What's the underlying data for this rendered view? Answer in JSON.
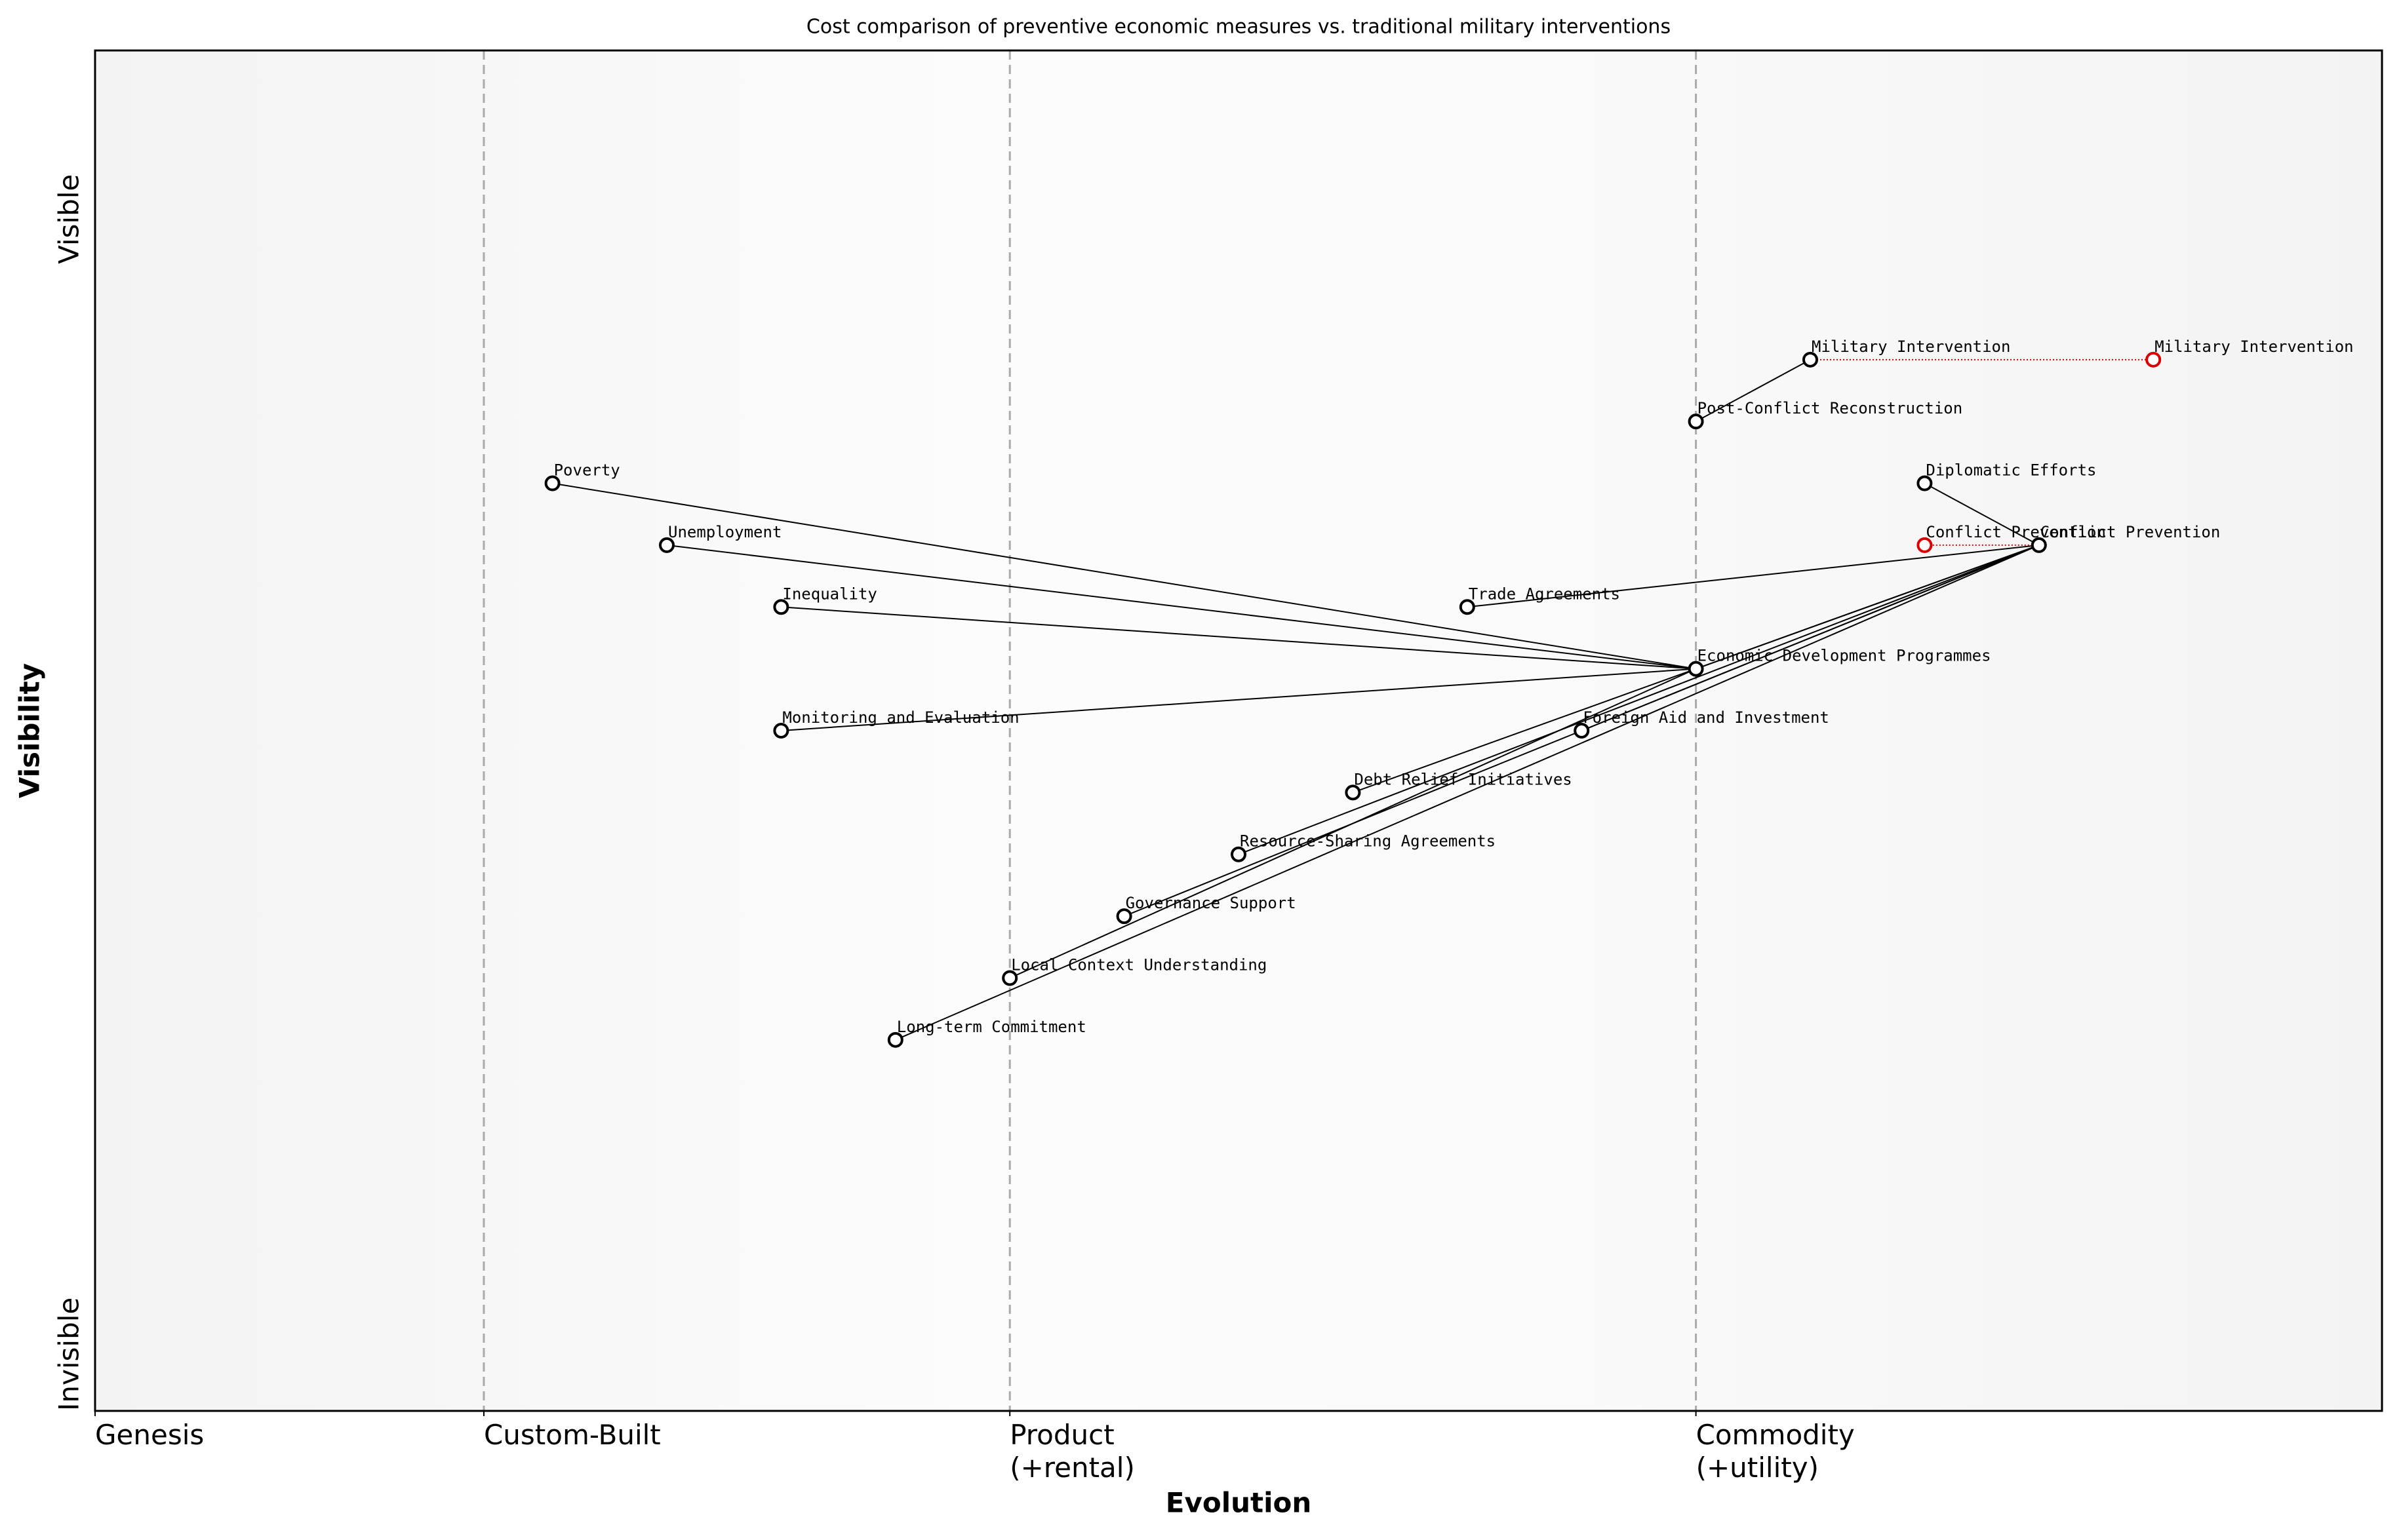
{
  "chart_data": {
    "type": "wardley",
    "title": "Cost comparison of preventive economic measures vs. traditional military interventions",
    "xlabel": "Evolution",
    "ylabel": "Visibility",
    "xlim": [
      0,
      1
    ],
    "ylim": [
      0,
      1.1
    ],
    "xticks": [
      {
        "value": 0,
        "label": "Genesis"
      },
      {
        "value": 0.17,
        "label": "Custom-Built"
      },
      {
        "value": 0.4,
        "label": "Product\n(+rental)"
      },
      {
        "value": 0.7,
        "label": "Commodity\n(+utility)"
      }
    ],
    "yticks": [
      {
        "value": 0,
        "label": "Invisible"
      },
      {
        "value": 1,
        "label": "Visible"
      }
    ],
    "nodes": [
      {
        "name": "Military Intervention",
        "x": 0.75,
        "y": 0.85
      },
      {
        "name": "Post-Conflict Reconstruction",
        "x": 0.7,
        "y": 0.8
      },
      {
        "name": "Poverty",
        "x": 0.2,
        "y": 0.75
      },
      {
        "name": "Diplomatic Efforts",
        "x": 0.8,
        "y": 0.75
      },
      {
        "name": "Unemployment",
        "x": 0.25,
        "y": 0.7
      },
      {
        "name": "Conflict Prevention",
        "x": 0.85,
        "y": 0.7
      },
      {
        "name": "Inequality",
        "x": 0.3,
        "y": 0.65
      },
      {
        "name": "Trade Agreements",
        "x": 0.6,
        "y": 0.65
      },
      {
        "name": "Economic Development Programmes",
        "x": 0.7,
        "y": 0.6
      },
      {
        "name": "Monitoring and Evaluation",
        "x": 0.3,
        "y": 0.55
      },
      {
        "name": "Foreign Aid and Investment",
        "x": 0.65,
        "y": 0.55
      },
      {
        "name": "Debt Relief Initiatives",
        "x": 0.55,
        "y": 0.5
      },
      {
        "name": "Resource-Sharing Agreements",
        "x": 0.5,
        "y": 0.45
      },
      {
        "name": "Governance Support",
        "x": 0.45,
        "y": 0.4
      },
      {
        "name": "Local Context Understanding",
        "x": 0.4,
        "y": 0.35
      },
      {
        "name": "Long-term Commitment",
        "x": 0.35,
        "y": 0.3
      }
    ],
    "links": [
      [
        0,
        1
      ],
      [
        8,
        2
      ],
      [
        8,
        4
      ],
      [
        8,
        6
      ],
      [
        8,
        9
      ],
      [
        8,
        14
      ],
      [
        5,
        8
      ],
      [
        5,
        7
      ],
      [
        5,
        3
      ],
      [
        5,
        10
      ],
      [
        5,
        11
      ],
      [
        5,
        12
      ],
      [
        5,
        13
      ],
      [
        5,
        15
      ]
    ],
    "evolve": [
      {
        "node": 0,
        "name": "Military Intervention",
        "to": 0.9
      },
      {
        "node": 5,
        "name": "Conflict Prevention",
        "to": 0.8
      }
    ],
    "evolve_color": "#dd0000"
  }
}
